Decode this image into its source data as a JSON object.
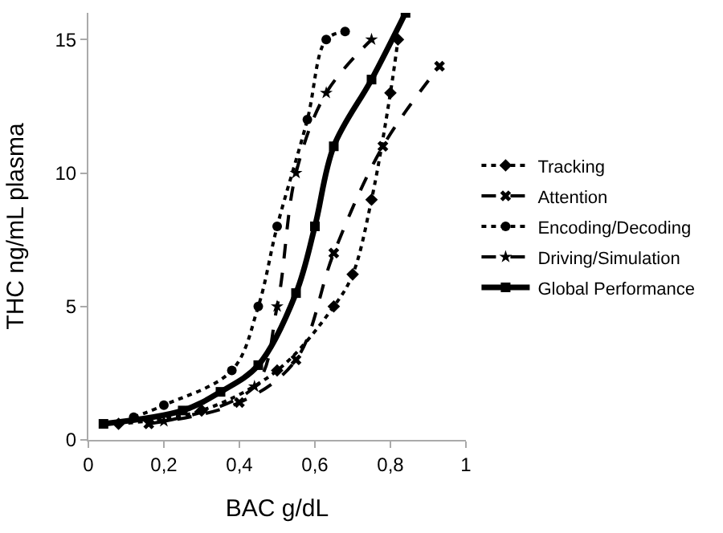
{
  "chart_data": {
    "type": "line",
    "xlabel": "BAC g/dL",
    "ylabel": "THC ng/mL plasma",
    "xlim": [
      0,
      1
    ],
    "ylim": [
      0,
      16
    ],
    "xticks": [
      0,
      {
        "value": 0.2,
        "label": "0,2"
      },
      {
        "value": 0.4,
        "label": "0,4"
      },
      {
        "value": 0.6,
        "label": "0,6"
      },
      {
        "value": 0.8,
        "label": "0,8"
      },
      1
    ],
    "yticks": [
      0,
      5,
      10,
      15
    ],
    "legend": "right",
    "series": [
      {
        "name": "Tracking",
        "color": "#000000",
        "marker": "diamond",
        "line_style": "dotted",
        "x": [
          0.08,
          0.3,
          0.5,
          0.65,
          0.7,
          0.75,
          0.8,
          0.82
        ],
        "values": [
          0.6,
          1.1,
          2.6,
          5,
          6.2,
          9,
          13,
          15
        ]
      },
      {
        "name": "Attention",
        "color": "#000000",
        "marker": "cross",
        "line_style": "dashed",
        "x": [
          0.16,
          0.4,
          0.55,
          0.65,
          0.78,
          0.93
        ],
        "values": [
          0.6,
          1.4,
          3,
          7,
          11,
          14
        ]
      },
      {
        "name": "Encoding/Decoding",
        "color": "#000000",
        "marker": "circle",
        "line_style": "dotted",
        "x": [
          0.12,
          0.2,
          0.38,
          0.45,
          0.5,
          0.58,
          0.63,
          0.68
        ],
        "values": [
          0.85,
          1.3,
          2.6,
          5,
          8,
          12,
          15,
          15.3
        ]
      },
      {
        "name": "Driving/Simulation",
        "color": "#000000",
        "marker": "star",
        "line_style": "dashed",
        "x": [
          0.2,
          0.44,
          0.5,
          0.55,
          0.63,
          0.75
        ],
        "values": [
          0.7,
          2,
          5,
          10,
          13,
          15
        ]
      },
      {
        "name": "Global Performance",
        "color": "#000000",
        "marker": "square",
        "line_style": "solid",
        "x": [
          0.04,
          0.25,
          0.35,
          0.45,
          0.55,
          0.6,
          0.65,
          0.75,
          0.84
        ],
        "values": [
          0.6,
          1.1,
          1.8,
          2.8,
          5.5,
          8,
          11,
          13.5,
          16
        ]
      }
    ]
  }
}
